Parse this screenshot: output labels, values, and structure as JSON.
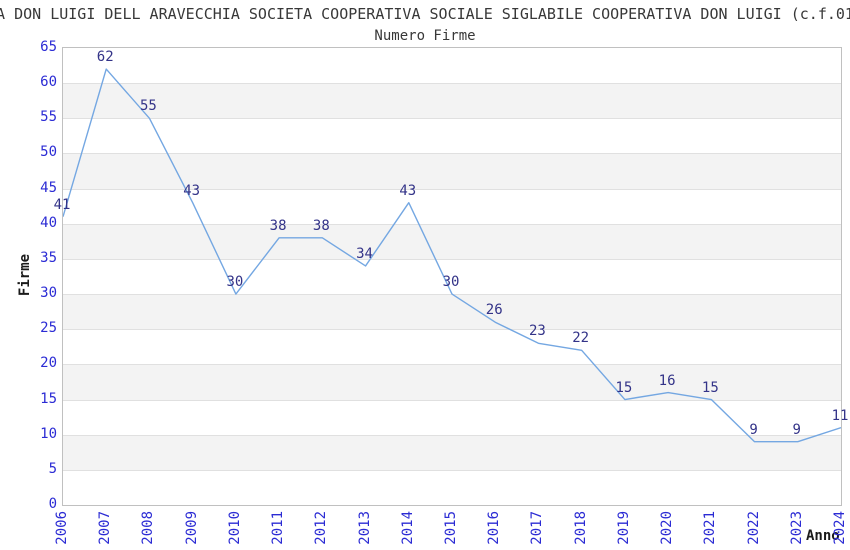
{
  "header": {
    "title": "A DON LUIGI DELL ARAVECCHIA SOCIETA COOPERATIVA SOCIALE SIGLABILE COOPERATIVA DON LUIGI (c.f.01",
    "subtitle": "Numero Firme"
  },
  "chart_data": {
    "type": "line",
    "title": "Numero Firme",
    "xlabel": "Anno",
    "ylabel": "Firme",
    "x": [
      "2006",
      "2007",
      "2008",
      "2009",
      "2010",
      "2011",
      "2012",
      "2013",
      "2014",
      "2015",
      "2016",
      "2017",
      "2018",
      "2019",
      "2020",
      "2021",
      "2022",
      "2023",
      "2024"
    ],
    "series": [
      {
        "name": "Firme",
        "values": [
          41,
          62,
          55,
          43,
          30,
          38,
          38,
          34,
          43,
          30,
          26,
          23,
          22,
          15,
          16,
          15,
          9,
          9,
          11
        ]
      }
    ],
    "ylim": [
      0,
      65
    ],
    "ytick_step": 5,
    "grid": "horizontal gridlines with alternating gray bands",
    "legend": "none",
    "data_labels_shown": true,
    "colors": {
      "background": "#ffffff",
      "title_text": "#383838",
      "line": "#74a7e2",
      "data_label": "#333388",
      "tick_label": "#2b2bd4",
      "axis_label": "#1a1a1a",
      "band_gray": "#f3f3f3",
      "gridline": "#e0e0e0",
      "plot_border": "#c0c0c0"
    }
  }
}
